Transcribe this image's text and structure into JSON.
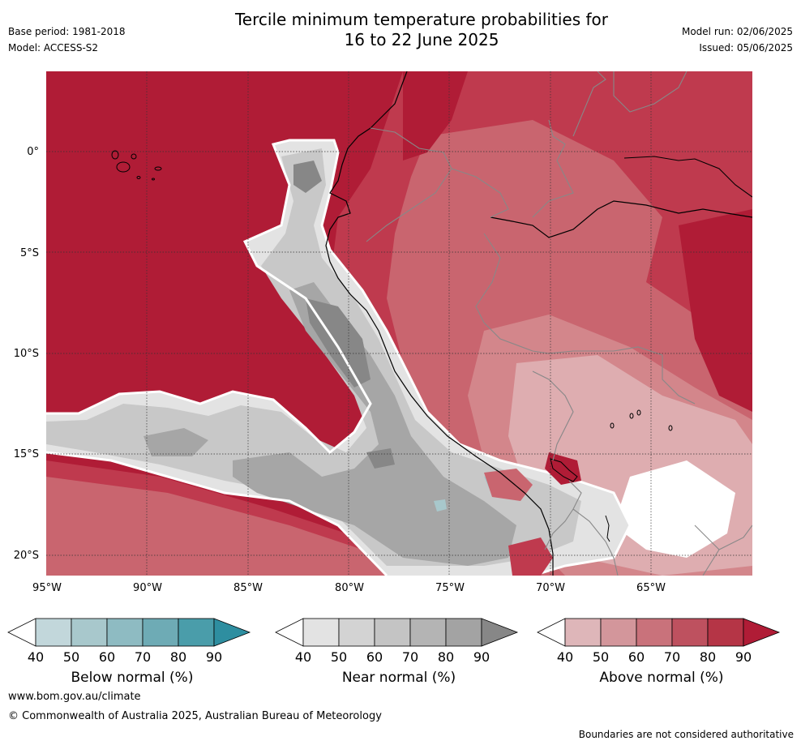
{
  "header": {
    "title_line1": "Tercile minimum temperature probabilities for",
    "title_line2": "16 to 22 June 2025",
    "base_period": "Base period: 1981-2018",
    "model": "Model: ACCESS-S2",
    "model_run": "Model run: 02/06/2025",
    "issued": "Issued: 05/06/2025"
  },
  "map": {
    "lat_labels": [
      "0°",
      "5°S",
      "10°S",
      "15°S",
      "20°S"
    ],
    "lon_labels": [
      "95°W",
      "90°W",
      "85°W",
      "80°W",
      "75°W",
      "70°W",
      "65°W"
    ],
    "colors": {
      "above_90": "#b01c36",
      "above_80": "#bf3a4e",
      "above_70": "#c9656f",
      "above_60": "#d3868b",
      "above_50": "#deadb0",
      "near_40": "#e3e3e3",
      "near_60": "#c8c8c8",
      "near_80": "#a6a6a6",
      "near_90": "#878787",
      "below_50": "#a8c8cc"
    }
  },
  "legends": [
    {
      "title": "Below normal (%)",
      "ticks": [
        "40",
        "50",
        "60",
        "70",
        "80",
        "90"
      ],
      "colors": [
        "#ffffff",
        "#c2d7db",
        "#a8c8cc",
        "#8ebbc2",
        "#6eabb5",
        "#4a9daa",
        "#2e8ea0"
      ]
    },
    {
      "title": "Near normal (%)",
      "ticks": [
        "40",
        "50",
        "60",
        "70",
        "80",
        "90"
      ],
      "colors": [
        "#ffffff",
        "#e3e3e3",
        "#d3d3d3",
        "#c4c4c4",
        "#b4b4b4",
        "#a3a3a3",
        "#878787"
      ]
    },
    {
      "title": "Above normal (%)",
      "ticks": [
        "40",
        "50",
        "60",
        "70",
        "80",
        "90"
      ],
      "colors": [
        "#ffffff",
        "#deb6b9",
        "#d3969b",
        "#c9727b",
        "#be515f",
        "#b53546",
        "#b01c36"
      ]
    }
  ],
  "footer": {
    "website": "www.bom.gov.au/climate",
    "copyright": "© Commonwealth of Australia 2025, Australian Bureau of Meteorology",
    "disclaimer": "Boundaries are not considered authoritative"
  }
}
